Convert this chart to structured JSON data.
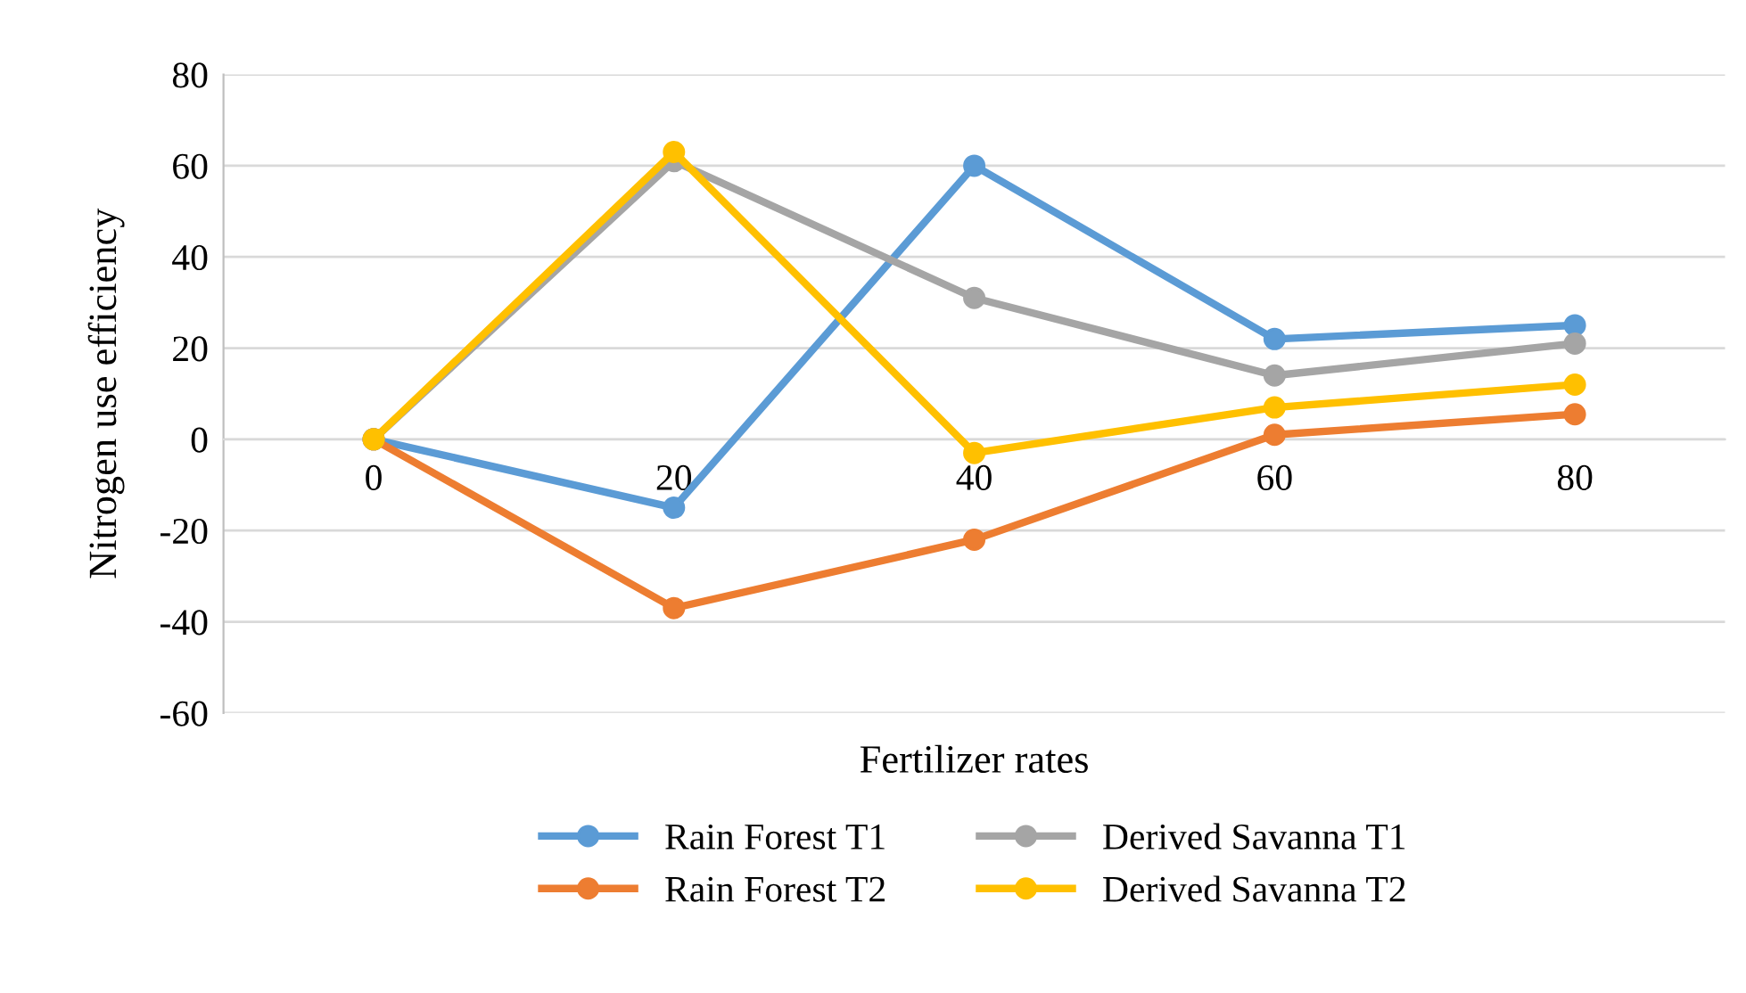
{
  "chart_data": {
    "type": "line",
    "xlabel": "Fertilizer rates",
    "ylabel": "Nitrogen use efficiency",
    "categories": [
      "0",
      "20",
      "40",
      "60",
      "80"
    ],
    "series": [
      {
        "name": "Rain Forest T1",
        "color": "#5b9bd5",
        "values": [
          0,
          -15,
          60,
          22,
          25
        ]
      },
      {
        "name": "Rain Forest T2",
        "color": "#ed7d31",
        "values": [
          0,
          -37,
          -22,
          1,
          5.5
        ]
      },
      {
        "name": "Derived Savanna T1",
        "color": "#a5a5a5",
        "values": [
          0,
          61,
          31,
          14,
          21
        ]
      },
      {
        "name": "Derived Savanna T2",
        "color": "#ffc000",
        "values": [
          0,
          63,
          -3,
          7,
          12
        ]
      }
    ],
    "ylim": [
      -60,
      80
    ],
    "yticks": [
      -60,
      -40,
      -20,
      0,
      20,
      40,
      60,
      80
    ],
    "grid": "y",
    "legend": "bottom",
    "marker": "circle",
    "line_style": "solid"
  }
}
